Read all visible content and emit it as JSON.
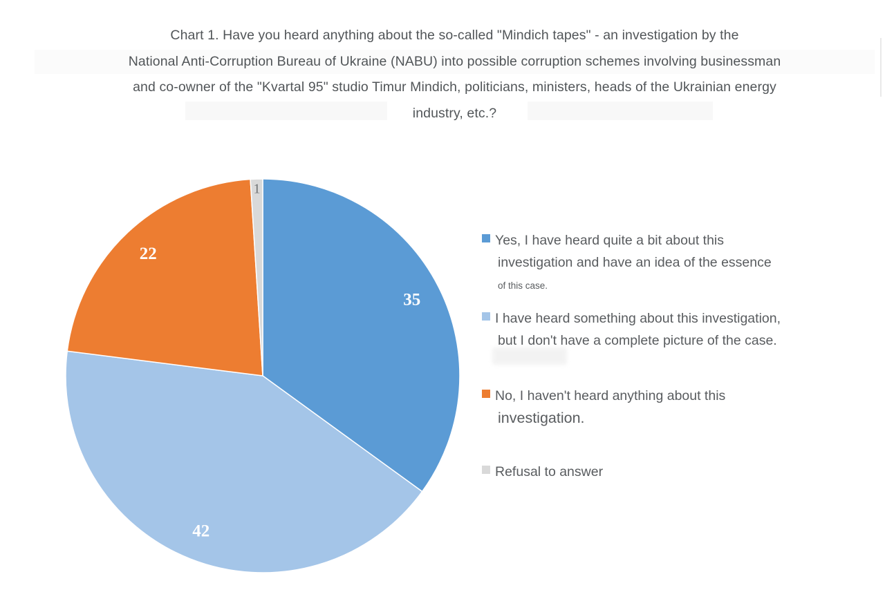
{
  "title": {
    "lines": [
      "Chart 1. Have you heard anything about the so-called \"Mindich tapes\" - an investigation by the",
      "National Anti-Corruption Bureau of Ukraine (NABU) into possible corruption schemes involving businessman",
      "and co-owner of the \"Kvartal 95\" studio Timur Mindich, politicians, ministers, heads of the Ukrainian energy",
      "industry, etc.?"
    ]
  },
  "chart_data": {
    "type": "pie",
    "title": "Chart 1. Have you heard anything about the so-called \"Mindich tapes\" - an investigation by the National Anti-Corruption Bureau of Ukraine (NABU) into possible corruption schemes involving businessman and co-owner of the \"Kvartal 95\" studio Timur Mindich, politicians, ministers, heads of the Ukrainian energy industry, etc.?",
    "unit": "percent",
    "start_angle_deg": -90,
    "direction": "clockwise",
    "legend_position": "right",
    "slices": [
      {
        "label": "Yes, I have heard quite a bit about this investigation and have an idea of the essence of this case.",
        "value": 35,
        "color": "#5B9BD5",
        "label_color": "#ffffff",
        "label_radius": 0.85,
        "label_style": "inside"
      },
      {
        "label": "I have heard something about this investigation, but I don't have a complete picture of the case.",
        "value": 42,
        "color": "#A4C5E8",
        "label_color": "#ffffff",
        "label_radius": 0.85,
        "label_style": "inside"
      },
      {
        "label": "No, I haven't heard anything about this investigation.",
        "value": 22,
        "color": "#ED7D31",
        "label_color": "#ffffff",
        "label_radius": 0.85,
        "label_style": "inside"
      },
      {
        "label": "Refusal to answer",
        "value": 1,
        "color": "#D9D9D9",
        "label_color": "#6f7274",
        "label_radius": 0.95,
        "label_style": "outside"
      }
    ]
  },
  "legend": {
    "items": [
      {
        "line1": "Yes, I have heard quite a bit about this",
        "line2": "investigation and have an idea of the essence",
        "line3": "of this case."
      },
      {
        "line1": "I have heard something about this investigation,",
        "line2": "but I don't have a complete picture of the case."
      },
      {
        "line1": "No, I haven't heard anything about this",
        "line2": "investigation."
      },
      {
        "line1": "Refusal to answer"
      }
    ]
  }
}
